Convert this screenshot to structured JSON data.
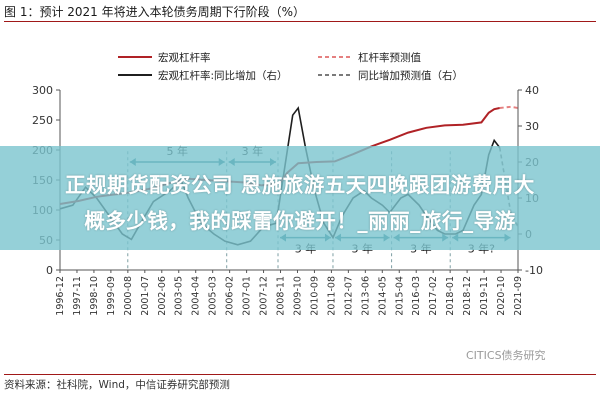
{
  "figure": {
    "title": "图 1：预计 2021 年将进入本轮债务周期下行阶段（%）",
    "source": "资料来源：社科院，Wind，中信证券研究部预测",
    "watermark": "CITICS债务研究",
    "overlay": {
      "line1": "正规期货配资公司 恩施旅游五天四晚跟团游费用大",
      "line2": "概多少钱，我的踩雷你避开！_丽丽_旅行_导游"
    }
  },
  "colors": {
    "leverage": "#b02226",
    "leverage_forecast": "#e58080",
    "yoy": "#1f1f1f",
    "yoy_forecast": "#7a7a7a",
    "annotation": "#2b7f8a"
  },
  "chart_data": {
    "type": "line",
    "legend": [
      {
        "key": "leverage",
        "label": "宏观杠杆率",
        "style": "solid"
      },
      {
        "key": "leverage_forecast",
        "label": "杠杆率预测值",
        "style": "dashed"
      },
      {
        "key": "yoy",
        "label": "宏观杠杆率:同比增加（右）",
        "style": "solid"
      },
      {
        "key": "yoy_forecast",
        "label": "同比增加预测值（右）",
        "style": "dashed"
      }
    ],
    "x_ticks": [
      "1996-12",
      "1997-11",
      "1998-10",
      "1999-09",
      "2000-08",
      "2001-07",
      "2002-06",
      "2003-05",
      "2004-04",
      "2005-03",
      "2006-02",
      "2007-01",
      "2007-12",
      "2008-11",
      "2009-10",
      "2010-09",
      "2011-08",
      "2012-07",
      "2013-06",
      "2014-05",
      "2015-04",
      "2016-03",
      "2017-02",
      "2018-01",
      "2018-12",
      "2019-11",
      "2020-10",
      "2021-09"
    ],
    "y_left": {
      "min": 0,
      "max": 300,
      "ticks": [
        0,
        50,
        100,
        150,
        200,
        250,
        300
      ]
    },
    "y_right": {
      "min": -10,
      "max": 40,
      "ticks": [
        -10,
        0,
        10,
        20,
        30,
        40
      ]
    },
    "series": {
      "leverage": [
        [
          1996.9,
          110
        ],
        [
          1997.9,
          115
        ],
        [
          1998.9,
          122
        ],
        [
          1999.9,
          126
        ],
        [
          2000.9,
          130
        ],
        [
          2001.9,
          136
        ],
        [
          2002.9,
          145
        ],
        [
          2003.9,
          152
        ],
        [
          2004.9,
          150
        ],
        [
          2005.9,
          148
        ],
        [
          2006.9,
          146
        ],
        [
          2007.9,
          141
        ],
        [
          2008.9,
          145
        ],
        [
          2009.3,
          162
        ],
        [
          2009.9,
          178
        ],
        [
          2010.9,
          180
        ],
        [
          2011.9,
          181
        ],
        [
          2012.9,
          193
        ],
        [
          2013.9,
          206
        ],
        [
          2014.9,
          217
        ],
        [
          2015.9,
          229
        ],
        [
          2016.9,
          237
        ],
        [
          2017.9,
          241
        ],
        [
          2018.9,
          242
        ],
        [
          2019.9,
          246
        ],
        [
          2020.3,
          262
        ],
        [
          2020.6,
          268
        ],
        [
          2020.9,
          270
        ]
      ],
      "leverage_forecast": [
        [
          2020.9,
          270
        ],
        [
          2021.2,
          271
        ],
        [
          2021.5,
          272
        ],
        [
          2021.9,
          270
        ]
      ],
      "yoy": [
        [
          1996.9,
          7
        ],
        [
          1997.6,
          8
        ],
        [
          1998.3,
          13
        ],
        [
          1998.9,
          10
        ],
        [
          1999.6,
          5
        ],
        [
          2000.3,
          0
        ],
        [
          2000.8,
          -1.5
        ],
        [
          2001.3,
          3
        ],
        [
          2002.0,
          9
        ],
        [
          2002.9,
          12
        ],
        [
          2003.5,
          15
        ],
        [
          2003.9,
          10
        ],
        [
          2004.6,
          3
        ],
        [
          2005.3,
          0
        ],
        [
          2005.9,
          -2
        ],
        [
          2006.6,
          -3
        ],
        [
          2007.3,
          -2
        ],
        [
          2008.0,
          2
        ],
        [
          2008.7,
          3
        ],
        [
          2009.3,
          23
        ],
        [
          2009.6,
          33
        ],
        [
          2009.9,
          35
        ],
        [
          2010.3,
          24
        ],
        [
          2010.8,
          12
        ],
        [
          2011.3,
          3
        ],
        [
          2011.8,
          -1
        ],
        [
          2012.3,
          5
        ],
        [
          2012.9,
          10
        ],
        [
          2013.5,
          12
        ],
        [
          2013.9,
          10
        ],
        [
          2014.5,
          8
        ],
        [
          2014.9,
          6
        ],
        [
          2015.5,
          10
        ],
        [
          2015.9,
          11
        ],
        [
          2016.5,
          8
        ],
        [
          2016.9,
          5
        ],
        [
          2017.5,
          1
        ],
        [
          2017.9,
          0
        ],
        [
          2018.5,
          0
        ],
        [
          2018.9,
          1
        ],
        [
          2019.5,
          8
        ],
        [
          2019.9,
          11
        ],
        [
          2020.3,
          22
        ],
        [
          2020.6,
          26
        ],
        [
          2020.9,
          24
        ]
      ],
      "yoy_forecast": [
        [
          2020.9,
          24
        ],
        [
          2021.2,
          15
        ],
        [
          2021.5,
          6
        ],
        [
          2021.9,
          2
        ]
      ]
    },
    "annotations": [
      {
        "text": "5 年",
        "x0": 2000.6,
        "x1": 2006.0,
        "y": 20,
        "axis": "right",
        "placement": "above"
      },
      {
        "text": "3 年",
        "x0": 2006.0,
        "x1": 2008.8,
        "y": 20,
        "axis": "right",
        "placement": "above"
      },
      {
        "text": "3 年",
        "x0": 2008.8,
        "x1": 2011.8,
        "y": -1,
        "axis": "right",
        "placement": "below"
      },
      {
        "text": "3 年",
        "x0": 2011.8,
        "x1": 2015.0,
        "y": -1,
        "axis": "right",
        "placement": "below"
      },
      {
        "text": "3 年",
        "x0": 2015.0,
        "x1": 2018.2,
        "y": -1,
        "axis": "right",
        "placement": "below"
      },
      {
        "text": "3 年?",
        "x0": 2018.2,
        "x1": 2021.6,
        "y": -1,
        "axis": "right",
        "placement": "below"
      }
    ]
  }
}
